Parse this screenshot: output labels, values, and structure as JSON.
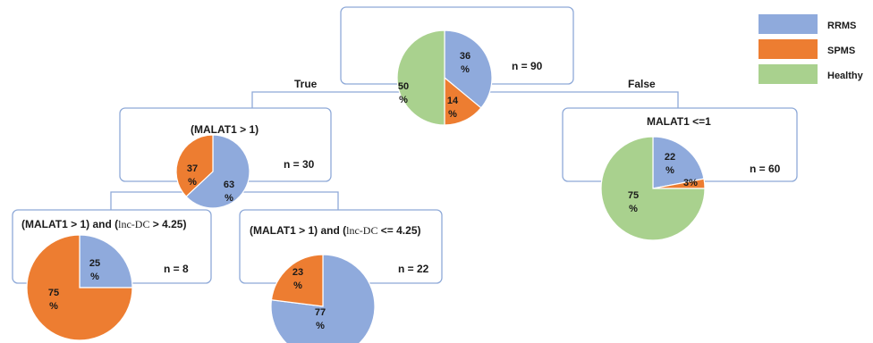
{
  "colors": {
    "RRMS": "#8faadc",
    "SPMS": "#ed7d31",
    "Healthy": "#a9d18e",
    "border": "#8ea9d8"
  },
  "legend": {
    "items": [
      "RRMS",
      "SPMS",
      "Healthy"
    ]
  },
  "edges": {
    "true_label": "True",
    "false_label": "False"
  },
  "nodes": {
    "root": {
      "n": "n = 90",
      "slices": [
        {
          "cls": "RRMS",
          "value": 36,
          "text": "36",
          "unit": "%"
        },
        {
          "cls": "SPMS",
          "value": 14,
          "text": "14",
          "unit": "%"
        },
        {
          "cls": "Healthy",
          "value": 50,
          "text": "50",
          "unit": "%"
        }
      ]
    },
    "left": {
      "title": "(MALAT1 > 1)",
      "n": "n = 30",
      "slices": [
        {
          "cls": "RRMS",
          "value": 63,
          "text": "63",
          "unit": "%"
        },
        {
          "cls": "SPMS",
          "value": 37,
          "text": "37",
          "unit": "%"
        }
      ]
    },
    "right": {
      "title": "MALAT1 <=1",
      "n": "n = 60",
      "slices": [
        {
          "cls": "RRMS",
          "value": 22,
          "text": "22",
          "unit": "%"
        },
        {
          "cls": "SPMS",
          "value": 3,
          "text": "3%",
          "unit": ""
        },
        {
          "cls": "Healthy",
          "value": 75,
          "text": "75",
          "unit": "%"
        }
      ]
    },
    "ll": {
      "title_a": "(MALAT1 > 1) and  (",
      "title_b": "lnc-DC",
      "title_c": "  > 4.25)",
      "n": "n = 8",
      "slices": [
        {
          "cls": "RRMS",
          "value": 25,
          "text": "25",
          "unit": "%"
        },
        {
          "cls": "SPMS",
          "value": 75,
          "text": "75",
          "unit": "%"
        }
      ]
    },
    "lr": {
      "title_a": "(MALAT1 > 1) and (",
      "title_b": "lnc-DC",
      "title_c": "  <= 4.25)",
      "n": "n = 22",
      "slices": [
        {
          "cls": "RRMS",
          "value": 77,
          "text": "77",
          "unit": "%"
        },
        {
          "cls": "SPMS",
          "value": 23,
          "text": "23",
          "unit": "%"
        }
      ]
    }
  }
}
